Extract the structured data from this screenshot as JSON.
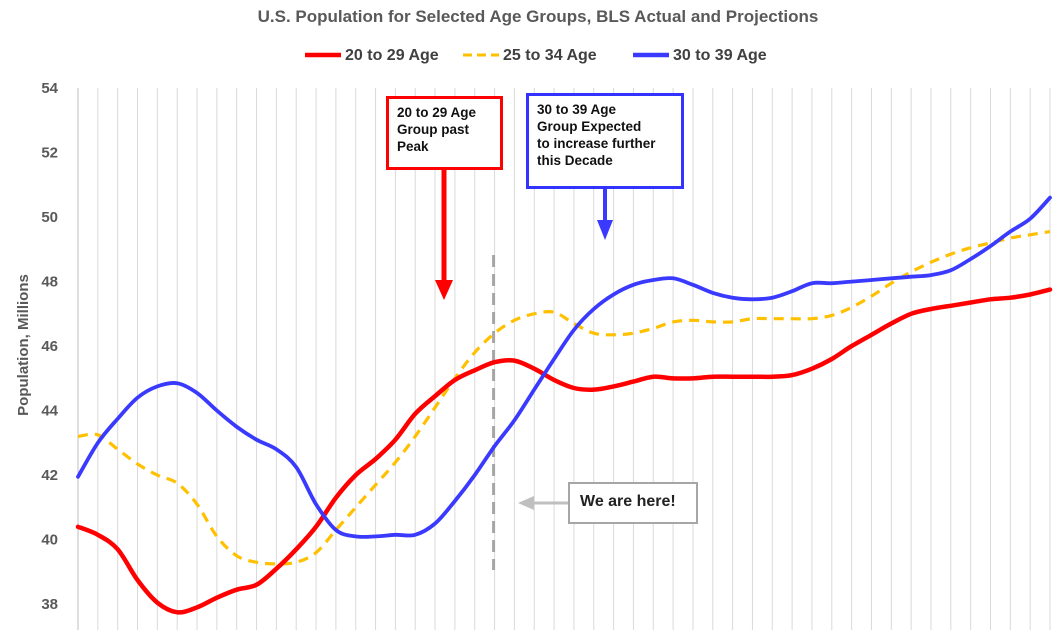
{
  "chart_data": {
    "type": "line",
    "title": "U.S. Population for Selected Age Groups, BLS Actual and Projections",
    "ylabel": "Population, Millions",
    "xlabel": "",
    "ylim": [
      37.2,
      54
    ],
    "yticks": [
      38,
      40,
      42,
      44,
      46,
      48,
      50,
      52,
      54
    ],
    "x_count": 50,
    "current_index": 21,
    "legend_position": "top",
    "grid": "vertical",
    "series": [
      {
        "name": "20 to 29 Age",
        "color": "#ff0000",
        "dash": "solid",
        "values": [
          40.4,
          40.15,
          39.7,
          38.75,
          38.05,
          37.75,
          37.9,
          38.2,
          38.45,
          38.6,
          39.1,
          39.7,
          40.4,
          41.3,
          42.0,
          42.5,
          43.1,
          43.9,
          44.45,
          44.95,
          45.25,
          45.5,
          45.55,
          45.3,
          44.95,
          44.7,
          44.65,
          44.75,
          44.9,
          45.05,
          45.0,
          45.0,
          45.05,
          45.05,
          45.05,
          45.05,
          45.1,
          45.3,
          45.6,
          46.0,
          46.35,
          46.7,
          47.0,
          47.15,
          47.25,
          47.35,
          47.45,
          47.5,
          47.6,
          47.75
        ]
      },
      {
        "name": "25 to 34 Age",
        "color": "#ffc000",
        "dash": "dashed",
        "values": [
          43.2,
          43.25,
          42.8,
          42.35,
          42.0,
          41.75,
          41.1,
          40.1,
          39.5,
          39.3,
          39.25,
          39.3,
          39.6,
          40.3,
          41.0,
          41.7,
          42.4,
          43.2,
          44.1,
          45.0,
          45.8,
          46.4,
          46.8,
          47.0,
          47.05,
          46.7,
          46.4,
          46.35,
          46.4,
          46.55,
          46.75,
          46.8,
          46.75,
          46.75,
          46.85,
          46.85,
          46.85,
          46.85,
          46.95,
          47.2,
          47.55,
          47.95,
          48.3,
          48.6,
          48.85,
          49.05,
          49.2,
          49.35,
          49.45,
          49.55
        ]
      },
      {
        "name": "30 to 39 Age",
        "color": "#3a3aff",
        "dash": "solid",
        "values": [
          41.95,
          43.0,
          43.75,
          44.4,
          44.75,
          44.85,
          44.55,
          44.0,
          43.5,
          43.1,
          42.8,
          42.25,
          41.1,
          40.3,
          40.1,
          40.1,
          40.15,
          40.15,
          40.5,
          41.2,
          42.0,
          42.9,
          43.7,
          44.65,
          45.6,
          46.5,
          47.15,
          47.6,
          47.9,
          48.05,
          48.1,
          47.9,
          47.65,
          47.5,
          47.45,
          47.5,
          47.7,
          47.95,
          47.95,
          48.0,
          48.05,
          48.1,
          48.15,
          48.2,
          48.35,
          48.7,
          49.1,
          49.55,
          49.95,
          50.6
        ]
      }
    ],
    "annotations": [
      {
        "id": "red",
        "lines": [
          "20 to 29 Age",
          "Group past",
          "Peak"
        ],
        "color": "#ff0000"
      },
      {
        "id": "blue",
        "lines": [
          "30 to 39 Age",
          "Group Expected",
          "to increase further",
          "this Decade"
        ],
        "color": "#3333ff"
      },
      {
        "id": "here",
        "lines": [
          "We are here!"
        ],
        "color": "#a6a6a6"
      }
    ]
  }
}
